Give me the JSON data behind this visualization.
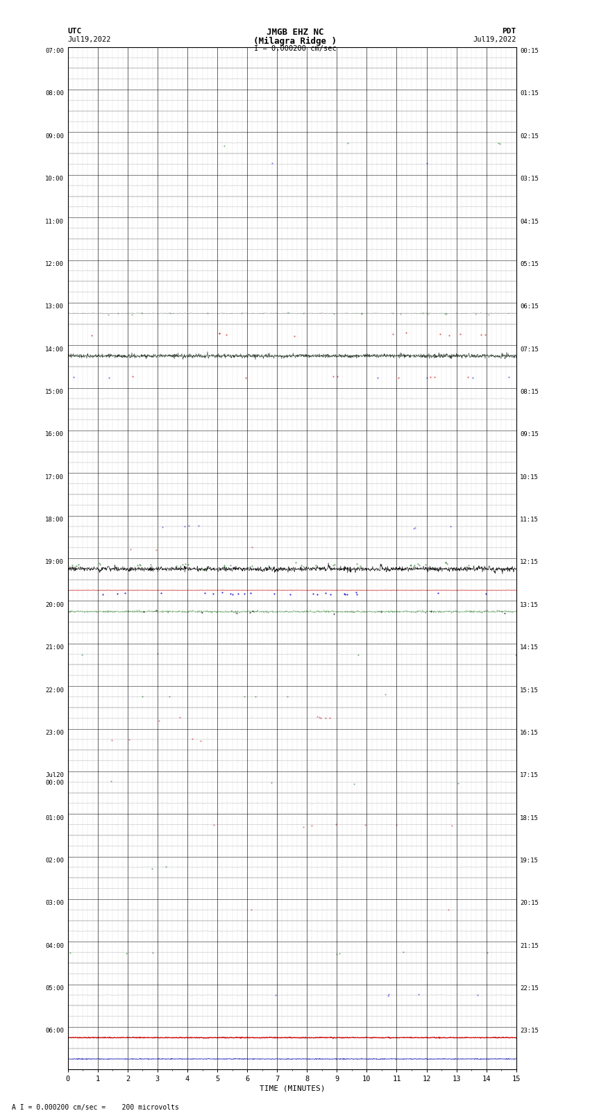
{
  "title_line1": "JMGB EHZ NC",
  "title_line2": "(Milagra Ridge )",
  "scale_text": "I = 0.000200 cm/sec",
  "utc_label": "UTC",
  "utc_date": "Jul19,2022",
  "pdt_label": "PDT",
  "pdt_date": "Jul19,2022",
  "xlabel": "TIME (MINUTES)",
  "footnote": "A I = 0.000200 cm/sec =    200 microvolts",
  "bg_color": "#ffffff",
  "left_times_utc": [
    "07:00",
    "",
    "08:00",
    "",
    "09:00",
    "",
    "10:00",
    "",
    "11:00",
    "",
    "12:00",
    "",
    "13:00",
    "",
    "14:00",
    "",
    "15:00",
    "",
    "16:00",
    "",
    "17:00",
    "",
    "18:00",
    "",
    "19:00",
    "",
    "20:00",
    "",
    "21:00",
    "",
    "22:00",
    "",
    "23:00",
    "",
    "Jul20\n00:00",
    "",
    "01:00",
    "",
    "02:00",
    "",
    "03:00",
    "",
    "04:00",
    "",
    "05:00",
    "",
    "06:00",
    ""
  ],
  "right_times_pdt": [
    "00:15",
    "",
    "01:15",
    "",
    "02:15",
    "",
    "03:15",
    "",
    "04:15",
    "",
    "05:15",
    "",
    "06:15",
    "",
    "07:15",
    "",
    "08:15",
    "",
    "09:15",
    "",
    "10:15",
    "",
    "11:15",
    "",
    "12:15",
    "",
    "13:15",
    "",
    "14:15",
    "",
    "15:15",
    "",
    "16:15",
    "",
    "17:15",
    "",
    "18:15",
    "",
    "19:15",
    "",
    "20:15",
    "",
    "21:15",
    "",
    "22:15",
    "",
    "23:15",
    ""
  ],
  "n_rows": 48,
  "n_minutes": 15,
  "noise_std_quiet": 0.006
}
